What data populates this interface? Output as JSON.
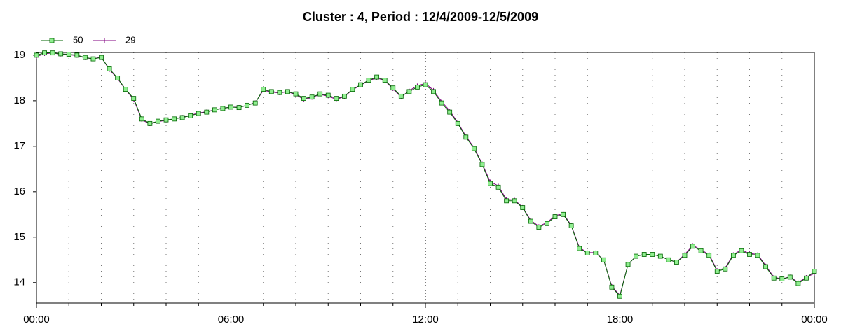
{
  "chart_data": {
    "type": "line",
    "title": "Cluster : 4, Period : 12/4/2009-12/5/2009",
    "x": [
      0,
      0.25,
      0.5,
      0.75,
      1,
      1.25,
      1.5,
      1.75,
      2,
      2.25,
      2.5,
      2.75,
      3,
      3.25,
      3.5,
      3.75,
      4,
      4.25,
      4.5,
      4.75,
      5,
      5.25,
      5.5,
      5.75,
      6,
      6.25,
      6.5,
      6.75,
      7,
      7.25,
      7.5,
      7.75,
      8,
      8.25,
      8.5,
      8.75,
      9,
      9.25,
      9.5,
      9.75,
      10,
      10.25,
      10.5,
      10.75,
      11,
      11.25,
      11.5,
      11.75,
      12,
      12.25,
      12.5,
      12.75,
      13,
      13.25,
      13.5,
      13.75,
      14,
      14.25,
      14.5,
      14.75,
      15,
      15.25,
      15.5,
      15.75,
      16,
      16.25,
      16.5,
      16.75,
      17,
      17.25,
      17.5,
      17.75,
      18,
      18.25,
      18.5,
      18.75,
      19,
      19.25,
      19.5,
      19.75,
      20,
      20.25,
      20.5,
      20.75,
      21,
      21.25,
      21.5,
      21.75,
      22,
      22.25,
      22.5,
      22.75,
      23,
      23.25,
      23.5,
      23.75,
      24
    ],
    "series": [
      {
        "name": "50",
        "color": "#006400",
        "marker": "square",
        "marker_color": "#90ee90",
        "values": [
          19.0,
          19.05,
          19.05,
          19.03,
          19.02,
          19.0,
          18.95,
          18.92,
          18.95,
          18.7,
          18.5,
          18.25,
          18.05,
          17.6,
          17.5,
          17.55,
          17.58,
          17.6,
          17.63,
          17.67,
          17.72,
          17.75,
          17.8,
          17.83,
          17.86,
          17.85,
          17.9,
          17.95,
          18.25,
          18.2,
          18.18,
          18.2,
          18.15,
          18.05,
          18.08,
          18.15,
          18.12,
          18.05,
          18.1,
          18.25,
          18.35,
          18.45,
          18.52,
          18.45,
          18.28,
          18.1,
          18.2,
          18.3,
          18.35,
          18.2,
          17.95,
          17.75,
          17.5,
          17.2,
          16.95,
          16.6,
          16.18,
          16.1,
          15.8,
          15.8,
          15.65,
          15.35,
          15.22,
          15.3,
          15.45,
          15.5,
          15.25,
          14.75,
          14.65,
          14.65,
          14.5,
          13.9,
          13.7,
          14.4,
          14.58,
          14.62,
          14.62,
          14.58,
          14.5,
          14.45,
          14.6,
          14.8,
          14.7,
          14.6,
          14.25,
          14.3,
          14.6,
          14.7,
          14.62,
          14.6,
          14.35,
          14.1,
          14.08,
          14.12,
          13.98,
          14.1,
          14.25
        ]
      },
      {
        "name": "29",
        "color": "#800080",
        "marker": "plus",
        "values": [
          18.97,
          19.03,
          19.05,
          19.02,
          19.01,
          18.99,
          18.94,
          18.92,
          18.96,
          18.68,
          18.49,
          18.24,
          18.03,
          17.58,
          17.49,
          17.54,
          17.57,
          17.6,
          17.64,
          17.68,
          17.73,
          17.76,
          17.8,
          17.84,
          17.86,
          17.86,
          17.9,
          17.96,
          18.23,
          18.19,
          18.17,
          18.2,
          18.13,
          18.03,
          18.07,
          18.14,
          18.1,
          18.03,
          18.09,
          18.24,
          18.34,
          18.44,
          18.5,
          18.44,
          18.26,
          18.08,
          18.22,
          18.33,
          18.38,
          18.23,
          17.98,
          17.78,
          17.52,
          17.22,
          16.97,
          16.62,
          16.22,
          16.13,
          15.83,
          15.82,
          15.66,
          15.37,
          15.24,
          15.32,
          15.47,
          15.52,
          15.26,
          14.77,
          14.66,
          14.66,
          14.5,
          13.92,
          13.72,
          14.4,
          14.58,
          14.62,
          14.62,
          14.58,
          14.5,
          14.45,
          14.62,
          14.82,
          14.72,
          14.62,
          14.27,
          14.32,
          14.62,
          14.72,
          14.64,
          14.62,
          14.37,
          14.12,
          14.08,
          14.13,
          14.0,
          14.12,
          14.2
        ]
      }
    ],
    "xlim": [
      0,
      24
    ],
    "xticks": [
      {
        "value": 0,
        "label": "00:00"
      },
      {
        "value": 6,
        "label": "06:00"
      },
      {
        "value": 12,
        "label": "12:00"
      },
      {
        "value": 18,
        "label": "18:00"
      },
      {
        "value": 24,
        "label": "00:00"
      }
    ],
    "x_minor_ticks": [
      1,
      2,
      3,
      4,
      5,
      7,
      8,
      9,
      10,
      11,
      13,
      14,
      15,
      16,
      17,
      19,
      20,
      21,
      22,
      23
    ],
    "ylim": [
      13.55,
      19.06
    ],
    "yticks": [
      14,
      15,
      16,
      17,
      18,
      19
    ],
    "grid": true,
    "legend": "top-left"
  }
}
